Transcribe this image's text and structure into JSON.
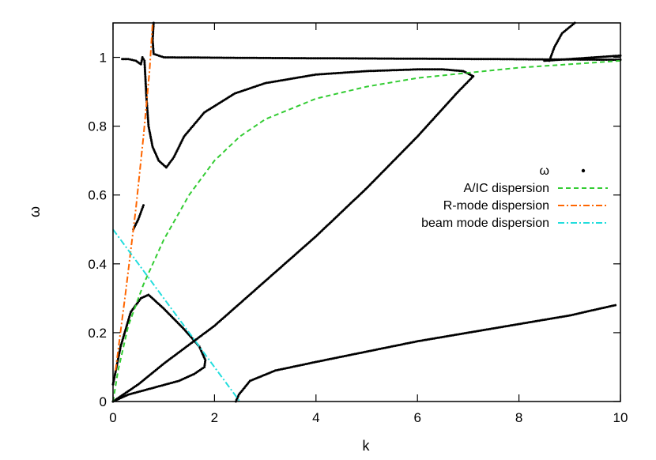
{
  "chart_data": {
    "type": "scatter",
    "title": "",
    "xlabel": "k",
    "ylabel": "ω",
    "xlim": [
      0,
      10
    ],
    "ylim": [
      0,
      1.1
    ],
    "x_ticks": [
      "0",
      "2",
      "4",
      "6",
      "8",
      "10"
    ],
    "y_ticks": [
      "0",
      "0.2",
      "0.4",
      "0.6",
      "0.8",
      "1"
    ],
    "legend_position": "right",
    "grid": false,
    "series": [
      {
        "name": "ω",
        "style": "points",
        "color": "#000000",
        "branches": [
          [
            [
              0.18,
              0.995
            ],
            [
              0.3,
              0.995
            ],
            [
              0.45,
              0.99
            ],
            [
              0.55,
              0.98
            ],
            [
              0.58,
              1.0
            ],
            [
              0.62,
              0.99
            ],
            [
              0.66,
              0.88
            ],
            [
              0.7,
              0.8
            ],
            [
              0.78,
              0.74
            ],
            [
              0.9,
              0.7
            ],
            [
              1.05,
              0.68
            ],
            [
              1.2,
              0.71
            ],
            [
              1.4,
              0.77
            ],
            [
              1.8,
              0.84
            ],
            [
              2.4,
              0.895
            ],
            [
              3.0,
              0.925
            ],
            [
              4.0,
              0.95
            ],
            [
              5.0,
              0.96
            ],
            [
              6.0,
              0.965
            ],
            [
              6.5,
              0.965
            ],
            [
              6.9,
              0.96
            ],
            [
              7.1,
              0.945
            ],
            [
              6.8,
              0.9
            ],
            [
              6.0,
              0.77
            ],
            [
              5.0,
              0.62
            ],
            [
              4.0,
              0.48
            ],
            [
              3.0,
              0.35
            ],
            [
              2.0,
              0.22
            ],
            [
              1.0,
              0.11
            ],
            [
              0.5,
              0.05
            ],
            [
              0.2,
              0.02
            ],
            [
              0.0,
              0.0
            ]
          ],
          [
            [
              0.4,
              0.5
            ],
            [
              0.5,
              0.53
            ],
            [
              0.6,
              0.57
            ]
          ],
          [
            [
              0.8,
              1.1
            ],
            [
              0.78,
              1.05
            ],
            [
              0.8,
              1.01
            ],
            [
              1.0,
              1.0
            ],
            [
              3.0,
              0.998
            ],
            [
              6.0,
              0.996
            ],
            [
              8.5,
              0.994
            ],
            [
              10.0,
              0.993
            ]
          ],
          [
            [
              8.6,
              0.99
            ],
            [
              8.7,
              1.03
            ],
            [
              8.85,
              1.07
            ],
            [
              9.1,
              1.1
            ]
          ],
          [
            [
              8.5,
              0.99
            ],
            [
              9.0,
              0.995
            ],
            [
              9.5,
              1.0
            ],
            [
              10.0,
              1.005
            ]
          ],
          [
            [
              0.0,
              0.0
            ],
            [
              0.3,
              0.02
            ],
            [
              0.8,
              0.04
            ],
            [
              1.3,
              0.06
            ],
            [
              1.6,
              0.08
            ],
            [
              1.8,
              0.1
            ],
            [
              1.82,
              0.12
            ],
            [
              1.7,
              0.16
            ],
            [
              1.4,
              0.21
            ],
            [
              1.0,
              0.27
            ],
            [
              0.7,
              0.31
            ],
            [
              0.55,
              0.3
            ],
            [
              0.35,
              0.26
            ],
            [
              0.15,
              0.16
            ],
            [
              0.0,
              0.05
            ]
          ],
          [
            [
              2.42,
              0.0
            ],
            [
              2.48,
              0.02
            ],
            [
              2.7,
              0.06
            ],
            [
              3.2,
              0.09
            ],
            [
              4.0,
              0.115
            ],
            [
              5.0,
              0.145
            ],
            [
              6.0,
              0.175
            ],
            [
              7.0,
              0.2
            ],
            [
              8.0,
              0.225
            ],
            [
              9.0,
              0.25
            ],
            [
              9.9,
              0.28
            ]
          ]
        ]
      },
      {
        "name": "A/IC dispersion",
        "style": "dashed",
        "color": "#33cc33",
        "points": [
          [
            0.0,
            0.0
          ],
          [
            0.1,
            0.09
          ],
          [
            0.3,
            0.22
          ],
          [
            0.6,
            0.34
          ],
          [
            1.0,
            0.47
          ],
          [
            1.5,
            0.6
          ],
          [
            2.0,
            0.7
          ],
          [
            2.5,
            0.77
          ],
          [
            3.0,
            0.82
          ],
          [
            4.0,
            0.88
          ],
          [
            5.0,
            0.915
          ],
          [
            6.0,
            0.94
          ],
          [
            7.0,
            0.955
          ],
          [
            8.0,
            0.97
          ],
          [
            9.0,
            0.98
          ],
          [
            10.0,
            0.99
          ]
        ]
      },
      {
        "name": "R-mode dispersion",
        "style": "dashdot",
        "color": "#ff6600",
        "points": [
          [
            0.05,
            0.09
          ],
          [
            0.25,
            0.32
          ],
          [
            0.45,
            0.56
          ],
          [
            0.6,
            0.77
          ],
          [
            0.72,
            0.96
          ],
          [
            0.78,
            1.1
          ]
        ]
      },
      {
        "name": "beam mode dispersion",
        "style": "dashdot",
        "color": "#22dddd",
        "points": [
          [
            0.0,
            0.5
          ],
          [
            0.5,
            0.4
          ],
          [
            1.0,
            0.3
          ],
          [
            1.5,
            0.2
          ],
          [
            2.0,
            0.1
          ],
          [
            2.5,
            0.0
          ]
        ]
      }
    ]
  }
}
